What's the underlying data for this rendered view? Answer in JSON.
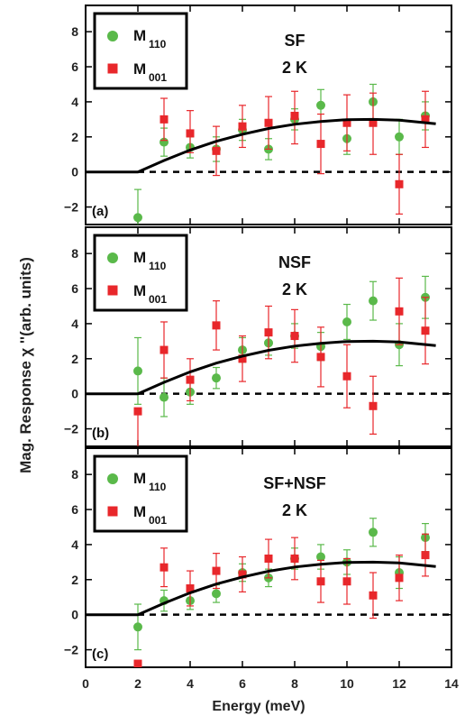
{
  "chart_data": {
    "type": "scatter",
    "ylabel": "Mag. Response χ ''(arb. units)",
    "xlabel": "Energy (meV)",
    "xlim": [
      0,
      14
    ],
    "xticks": [
      "0",
      "2",
      "4",
      "6",
      "8",
      "10",
      "12",
      "14"
    ],
    "ylim": [
      -3,
      9.5
    ],
    "yticks": [
      "−2",
      "0",
      "2",
      "4",
      "6",
      "8"
    ],
    "colors": {
      "M110": "#5ab94a",
      "M001": "#e8272b",
      "fit": "#000000",
      "baseline": "#000000"
    },
    "panels": [
      {
        "label": "(a)",
        "title_line1": "SF",
        "title_line2": "2 K",
        "legend": {
          "m110_main": "M",
          "m110_sub": "110",
          "m001_main": "M",
          "m001_sub": "001"
        },
        "series": [
          {
            "key": "M110",
            "marker": "circle",
            "color": "#5ab94a",
            "points": [
              {
                "x": 2,
                "y": -2.6,
                "lo": -3.3,
                "hi": -1.0
              },
              {
                "x": 3,
                "y": 1.7,
                "lo": 0.9,
                "hi": 2.5
              },
              {
                "x": 4,
                "y": 1.4,
                "lo": 0.8,
                "hi": 2.0
              },
              {
                "x": 5,
                "y": 1.3,
                "lo": 0.6,
                "hi": 2.0
              },
              {
                "x": 6,
                "y": 2.4,
                "lo": 1.8,
                "hi": 3.0
              },
              {
                "x": 7,
                "y": 1.3,
                "lo": 0.7,
                "hi": 1.9
              },
              {
                "x": 8,
                "y": 3.0,
                "lo": 2.4,
                "hi": 3.6
              },
              {
                "x": 9,
                "y": 3.8,
                "lo": 2.9,
                "hi": 4.7
              },
              {
                "x": 10,
                "y": 1.9,
                "lo": 1.0,
                "hi": 2.8
              },
              {
                "x": 11,
                "y": 4.0,
                "lo": 2.9,
                "hi": 5.0
              },
              {
                "x": 12,
                "y": 2.0,
                "lo": 1.0,
                "hi": 3.0
              },
              {
                "x": 13,
                "y": 3.2,
                "lo": 2.4,
                "hi": 4.0
              }
            ]
          },
          {
            "key": "M001",
            "marker": "square",
            "color": "#e8272b",
            "points": [
              {
                "x": 3,
                "y": 3.0,
                "lo": 1.8,
                "hi": 4.2
              },
              {
                "x": 4,
                "y": 2.2,
                "lo": 1.1,
                "hi": 3.5
              },
              {
                "x": 5,
                "y": 1.2,
                "lo": -0.2,
                "hi": 2.6
              },
              {
                "x": 6,
                "y": 2.6,
                "lo": 1.4,
                "hi": 3.8
              },
              {
                "x": 7,
                "y": 2.8,
                "lo": 1.3,
                "hi": 4.3
              },
              {
                "x": 8,
                "y": 3.2,
                "lo": 1.6,
                "hi": 4.6
              },
              {
                "x": 9,
                "y": 1.6,
                "lo": -0.1,
                "hi": 3.3
              },
              {
                "x": 10,
                "y": 2.8,
                "lo": 1.2,
                "hi": 4.4
              },
              {
                "x": 11,
                "y": 2.8,
                "lo": 1.0,
                "hi": 4.5
              },
              {
                "x": 12,
                "y": -0.7,
                "lo": -2.4,
                "hi": 1.0
              },
              {
                "x": 13,
                "y": 3.0,
                "lo": 1.4,
                "hi": 4.6
              }
            ]
          }
        ]
      },
      {
        "label": "(b)",
        "title_line1": "NSF",
        "title_line2": "2 K",
        "legend": {
          "m110_main": "M",
          "m110_sub": "110",
          "m001_main": "M",
          "m001_sub": "001"
        },
        "series": [
          {
            "key": "M110",
            "marker": "circle",
            "color": "#5ab94a",
            "points": [
              {
                "x": 2,
                "y": 1.3,
                "lo": -0.6,
                "hi": 3.2
              },
              {
                "x": 3,
                "y": -0.2,
                "lo": -1.3,
                "hi": 0.9
              },
              {
                "x": 4,
                "y": 0.1,
                "lo": -0.6,
                "hi": 0.8
              },
              {
                "x": 5,
                "y": 0.9,
                "lo": 0.3,
                "hi": 1.5
              },
              {
                "x": 6,
                "y": 2.5,
                "lo": 1.8,
                "hi": 3.2
              },
              {
                "x": 7,
                "y": 2.9,
                "lo": 2.2,
                "hi": 3.6
              },
              {
                "x": 8,
                "y": 3.3,
                "lo": 2.6,
                "hi": 4.0
              },
              {
                "x": 9,
                "y": 2.7,
                "lo": 1.9,
                "hi": 3.5
              },
              {
                "x": 10,
                "y": 4.1,
                "lo": 3.1,
                "hi": 5.1
              },
              {
                "x": 11,
                "y": 5.3,
                "lo": 4.2,
                "hi": 6.4
              },
              {
                "x": 12,
                "y": 2.8,
                "lo": 1.6,
                "hi": 4.0
              },
              {
                "x": 13,
                "y": 5.5,
                "lo": 4.3,
                "hi": 6.7
              }
            ]
          },
          {
            "key": "M001",
            "marker": "square",
            "color": "#e8272b",
            "points": [
              {
                "x": 2,
                "y": -1.0,
                "lo": -3.3,
                "hi": -1.0
              },
              {
                "x": 3,
                "y": 2.5,
                "lo": 0.9,
                "hi": 4.1
              },
              {
                "x": 4,
                "y": 0.8,
                "lo": -0.4,
                "hi": 2.0
              },
              {
                "x": 5,
                "y": 3.9,
                "lo": 2.5,
                "hi": 5.3
              },
              {
                "x": 6,
                "y": 2.0,
                "lo": 0.7,
                "hi": 3.3
              },
              {
                "x": 7,
                "y": 3.5,
                "lo": 2.0,
                "hi": 5.0
              },
              {
                "x": 8,
                "y": 3.3,
                "lo": 1.8,
                "hi": 4.8
              },
              {
                "x": 9,
                "y": 2.1,
                "lo": 0.4,
                "hi": 3.8
              },
              {
                "x": 10,
                "y": 1.0,
                "lo": -0.8,
                "hi": 2.8
              },
              {
                "x": 11,
                "y": -0.7,
                "lo": -2.3,
                "hi": 1.0
              },
              {
                "x": 12,
                "y": 4.7,
                "lo": 2.8,
                "hi": 6.6
              },
              {
                "x": 13,
                "y": 3.6,
                "lo": 1.7,
                "hi": 5.5
              }
            ]
          }
        ]
      },
      {
        "label": "(c)",
        "title_line1": "SF+NSF",
        "title_line2": "2 K",
        "legend": {
          "m110_main": "M",
          "m110_sub": "110",
          "m001_main": "M",
          "m001_sub": "001"
        },
        "series": [
          {
            "key": "M110",
            "marker": "circle",
            "color": "#5ab94a",
            "points": [
              {
                "x": 2,
                "y": -0.7,
                "lo": -2.0,
                "hi": 0.6
              },
              {
                "x": 3,
                "y": 0.8,
                "lo": 0.2,
                "hi": 1.4
              },
              {
                "x": 4,
                "y": 0.8,
                "lo": 0.3,
                "hi": 1.3
              },
              {
                "x": 5,
                "y": 1.2,
                "lo": 0.7,
                "hi": 1.7
              },
              {
                "x": 6,
                "y": 2.4,
                "lo": 1.9,
                "hi": 2.9
              },
              {
                "x": 7,
                "y": 2.1,
                "lo": 1.6,
                "hi": 2.6
              },
              {
                "x": 8,
                "y": 3.2,
                "lo": 2.6,
                "hi": 3.8
              },
              {
                "x": 9,
                "y": 3.3,
                "lo": 2.6,
                "hi": 4.0
              },
              {
                "x": 10,
                "y": 3.0,
                "lo": 2.3,
                "hi": 3.7
              },
              {
                "x": 11,
                "y": 4.7,
                "lo": 3.9,
                "hi": 5.5
              },
              {
                "x": 12,
                "y": 2.4,
                "lo": 1.5,
                "hi": 3.3
              },
              {
                "x": 13,
                "y": 4.4,
                "lo": 3.6,
                "hi": 5.2
              }
            ]
          },
          {
            "key": "M001",
            "marker": "square",
            "color": "#e8272b",
            "points": [
              {
                "x": 2,
                "y": -2.8,
                "lo": -3.3,
                "hi": -2.6
              },
              {
                "x": 3,
                "y": 2.7,
                "lo": 1.6,
                "hi": 3.8
              },
              {
                "x": 4,
                "y": 1.5,
                "lo": 0.5,
                "hi": 2.5
              },
              {
                "x": 5,
                "y": 2.5,
                "lo": 1.5,
                "hi": 3.5
              },
              {
                "x": 6,
                "y": 2.3,
                "lo": 1.3,
                "hi": 3.3
              },
              {
                "x": 7,
                "y": 3.2,
                "lo": 2.1,
                "hi": 4.3
              },
              {
                "x": 8,
                "y": 3.2,
                "lo": 2.0,
                "hi": 4.4
              },
              {
                "x": 9,
                "y": 1.9,
                "lo": 0.7,
                "hi": 3.1
              },
              {
                "x": 10,
                "y": 1.9,
                "lo": 0.6,
                "hi": 3.2
              },
              {
                "x": 11,
                "y": 1.1,
                "lo": -0.2,
                "hi": 2.4
              },
              {
                "x": 12,
                "y": 2.1,
                "lo": 0.8,
                "hi": 3.4
              },
              {
                "x": 13,
                "y": 3.4,
                "lo": 2.2,
                "hi": 4.6
              }
            ]
          }
        ]
      }
    ],
    "fit_curve": [
      [
        0,
        0
      ],
      [
        2,
        0
      ],
      [
        3,
        0.65
      ],
      [
        4,
        1.25
      ],
      [
        5,
        1.75
      ],
      [
        6,
        2.15
      ],
      [
        7,
        2.48
      ],
      [
        8,
        2.72
      ],
      [
        9,
        2.88
      ],
      [
        10,
        2.98
      ],
      [
        11,
        3.0
      ],
      [
        12,
        2.95
      ],
      [
        13.4,
        2.75
      ]
    ],
    "baseline": {
      "y": 0,
      "x_from": 2,
      "x_to": 14,
      "style": "dashed"
    }
  }
}
